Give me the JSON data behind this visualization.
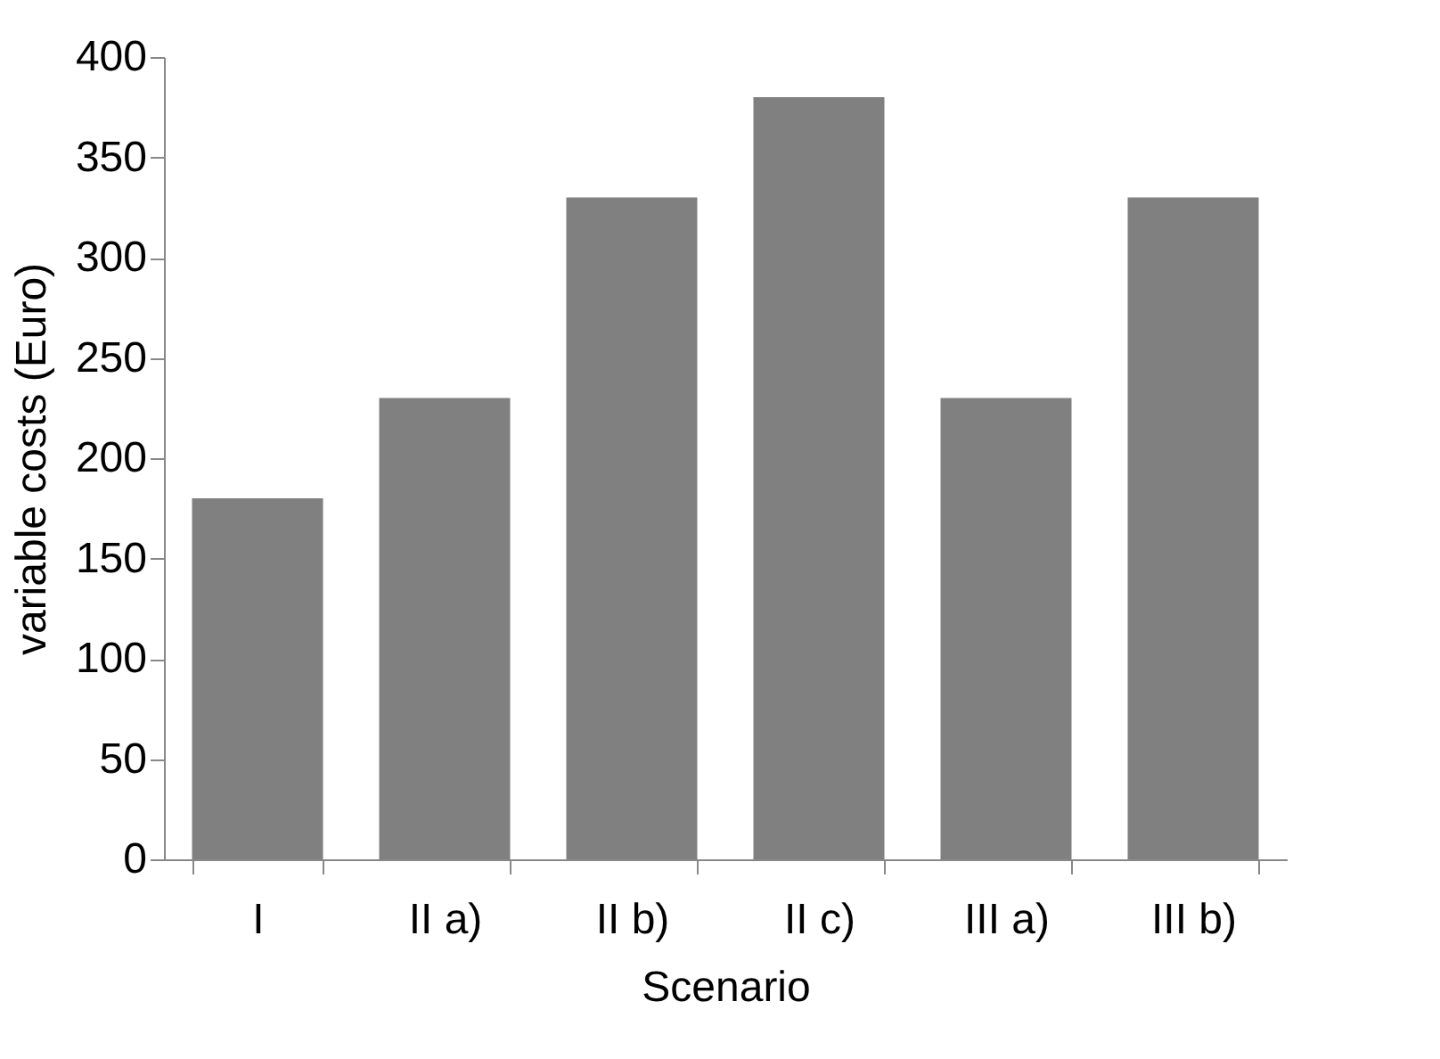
{
  "chart_data": {
    "type": "bar",
    "xlabel": "Scenario",
    "ylabel": "variable costs (Euro)",
    "categories": [
      "I",
      "II a)",
      "II b)",
      "II c)",
      "III a)",
      "III b)"
    ],
    "values": [
      180,
      230,
      330,
      380,
      230,
      330
    ],
    "color": "#808080",
    "ylim": [
      0,
      400
    ],
    "yticks": [
      0,
      50,
      100,
      150,
      200,
      250,
      300,
      350,
      400
    ],
    "grid": false
  }
}
